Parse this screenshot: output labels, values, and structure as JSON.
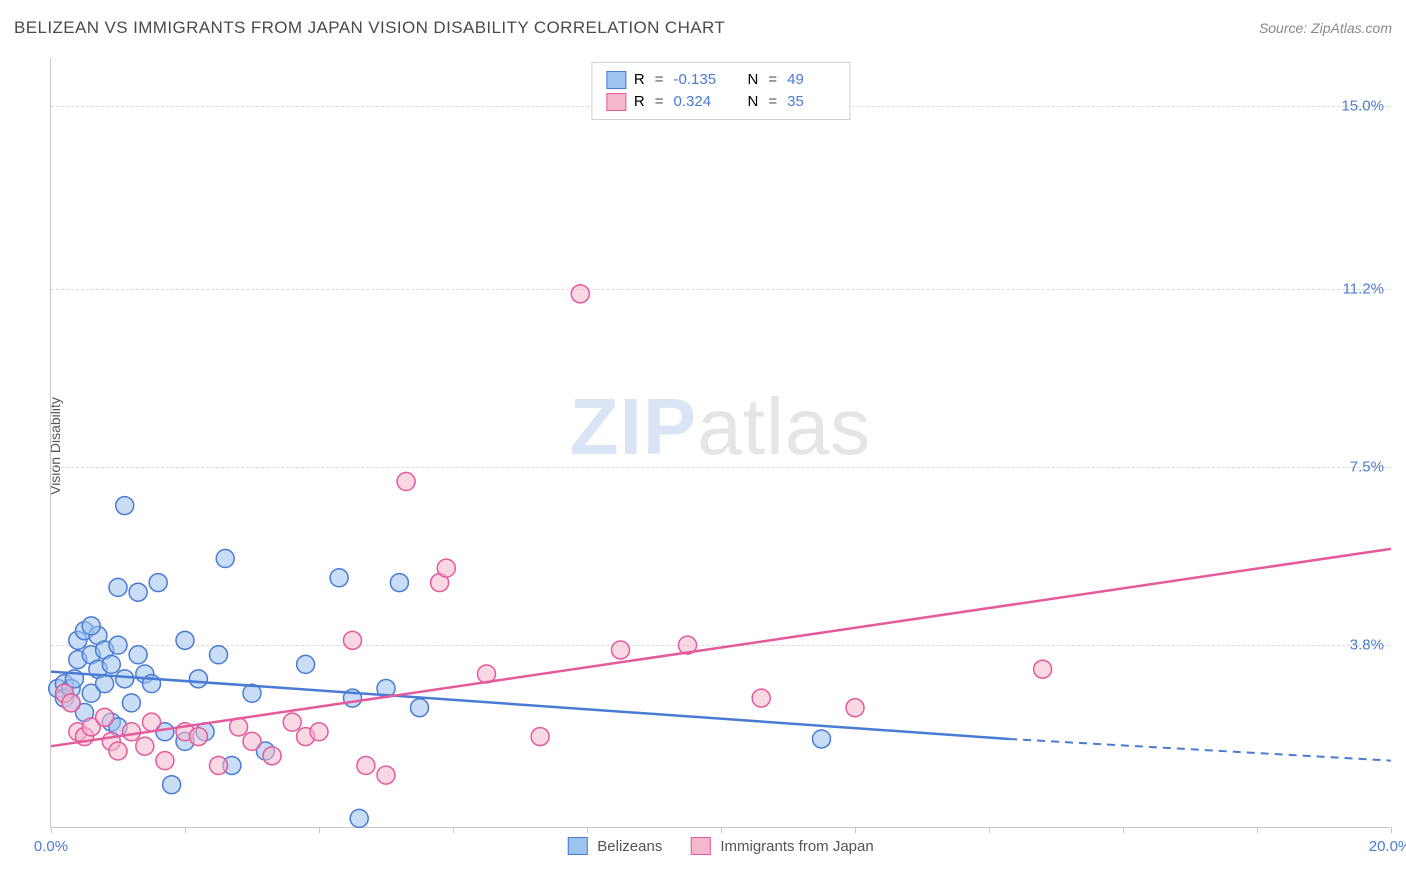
{
  "header": {
    "title": "BELIZEAN VS IMMIGRANTS FROM JAPAN VISION DISABILITY CORRELATION CHART",
    "source_label": "Source:",
    "source_value": "ZipAtlas.com"
  },
  "watermark": {
    "part1": "ZIP",
    "part2": "atlas"
  },
  "y_axis": {
    "label": "Vision Disability"
  },
  "chart": {
    "type": "scatter",
    "xlim": [
      0.0,
      20.0
    ],
    "ylim": [
      0.0,
      16.0
    ],
    "y_gridlines": [
      3.8,
      7.5,
      11.2,
      15.0
    ],
    "y_tick_labels": [
      "3.8%",
      "7.5%",
      "11.2%",
      "15.0%"
    ],
    "x_ticks": [
      0.0,
      2.0,
      4.0,
      6.0,
      8.0,
      10.0,
      12.0,
      14.0,
      16.0,
      18.0,
      20.0
    ],
    "x_labels": {
      "start": "0.0%",
      "end": "20.0%"
    },
    "background_color": "#ffffff",
    "grid_color": "#d9d9d9",
    "marker_radius": 9,
    "marker_opacity": 0.55,
    "series": [
      {
        "name": "Belizeans",
        "color_fill": "#9dc3ef",
        "color_stroke": "#4a7bd4",
        "R": "-0.135",
        "N": "49",
        "trend": {
          "x1": 0.0,
          "y1": 3.25,
          "x2": 14.3,
          "y2": 1.85,
          "dash_from_x": 14.3,
          "dash_to_x": 20.0,
          "dash_to_y": 1.4
        },
        "points": [
          [
            0.1,
            2.9
          ],
          [
            0.2,
            3.0
          ],
          [
            0.2,
            2.7
          ],
          [
            0.3,
            2.9
          ],
          [
            0.3,
            2.6
          ],
          [
            0.35,
            3.1
          ],
          [
            0.4,
            3.5
          ],
          [
            0.4,
            3.9
          ],
          [
            0.5,
            4.1
          ],
          [
            0.5,
            2.4
          ],
          [
            0.6,
            3.6
          ],
          [
            0.6,
            2.8
          ],
          [
            0.7,
            3.3
          ],
          [
            0.7,
            4.0
          ],
          [
            0.8,
            3.0
          ],
          [
            0.8,
            3.7
          ],
          [
            0.9,
            2.2
          ],
          [
            0.9,
            3.4
          ],
          [
            1.0,
            3.8
          ],
          [
            1.0,
            5.0
          ],
          [
            1.1,
            6.7
          ],
          [
            1.1,
            3.1
          ],
          [
            1.2,
            2.6
          ],
          [
            1.3,
            4.9
          ],
          [
            1.4,
            3.2
          ],
          [
            1.5,
            3.0
          ],
          [
            1.6,
            5.1
          ],
          [
            1.7,
            2.0
          ],
          [
            1.8,
            0.9
          ],
          [
            2.0,
            3.9
          ],
          [
            2.0,
            1.8
          ],
          [
            2.2,
            3.1
          ],
          [
            2.3,
            2.0
          ],
          [
            2.5,
            3.6
          ],
          [
            2.6,
            5.6
          ],
          [
            2.7,
            1.3
          ],
          [
            3.0,
            2.8
          ],
          [
            3.2,
            1.6
          ],
          [
            3.8,
            3.4
          ],
          [
            4.3,
            5.2
          ],
          [
            4.5,
            2.7
          ],
          [
            4.6,
            0.2
          ],
          [
            5.0,
            2.9
          ],
          [
            5.2,
            5.1
          ],
          [
            5.5,
            2.5
          ],
          [
            1.0,
            2.1
          ],
          [
            1.3,
            3.6
          ],
          [
            0.6,
            4.2
          ],
          [
            11.5,
            1.85
          ]
        ]
      },
      {
        "name": "Immigrants from Japan",
        "color_fill": "#f4b8cd",
        "color_stroke": "#e55a9a",
        "R": "0.324",
        "N": "35",
        "trend": {
          "x1": 0.0,
          "y1": 1.7,
          "x2": 20.0,
          "y2": 5.8,
          "dash_from_x": null
        },
        "points": [
          [
            0.2,
            2.8
          ],
          [
            0.3,
            2.6
          ],
          [
            0.4,
            2.0
          ],
          [
            0.5,
            1.9
          ],
          [
            0.6,
            2.1
          ],
          [
            0.8,
            2.3
          ],
          [
            0.9,
            1.8
          ],
          [
            1.0,
            1.6
          ],
          [
            1.2,
            2.0
          ],
          [
            1.4,
            1.7
          ],
          [
            1.5,
            2.2
          ],
          [
            1.7,
            1.4
          ],
          [
            2.0,
            2.0
          ],
          [
            2.2,
            1.9
          ],
          [
            2.5,
            1.3
          ],
          [
            2.8,
            2.1
          ],
          [
            3.0,
            1.8
          ],
          [
            3.3,
            1.5
          ],
          [
            3.6,
            2.2
          ],
          [
            3.8,
            1.9
          ],
          [
            4.0,
            2.0
          ],
          [
            4.5,
            3.9
          ],
          [
            4.7,
            1.3
          ],
          [
            5.0,
            1.1
          ],
          [
            5.3,
            7.2
          ],
          [
            5.8,
            5.1
          ],
          [
            5.9,
            5.4
          ],
          [
            6.5,
            3.2
          ],
          [
            7.3,
            1.9
          ],
          [
            7.9,
            11.1
          ],
          [
            8.5,
            3.7
          ],
          [
            9.5,
            3.8
          ],
          [
            10.6,
            2.7
          ],
          [
            12.0,
            2.5
          ],
          [
            14.8,
            3.3
          ]
        ]
      }
    ]
  },
  "legend_bottom": {
    "items": [
      {
        "swatch_fill": "#9dc3ef",
        "swatch_stroke": "#4a7bd4",
        "label": "Belizeans"
      },
      {
        "swatch_fill": "#f4b8cd",
        "swatch_stroke": "#e55a9a",
        "label": "Immigrants from Japan"
      }
    ]
  },
  "legend_top": {
    "r_label": "R",
    "n_label": "N",
    "eq": "="
  }
}
